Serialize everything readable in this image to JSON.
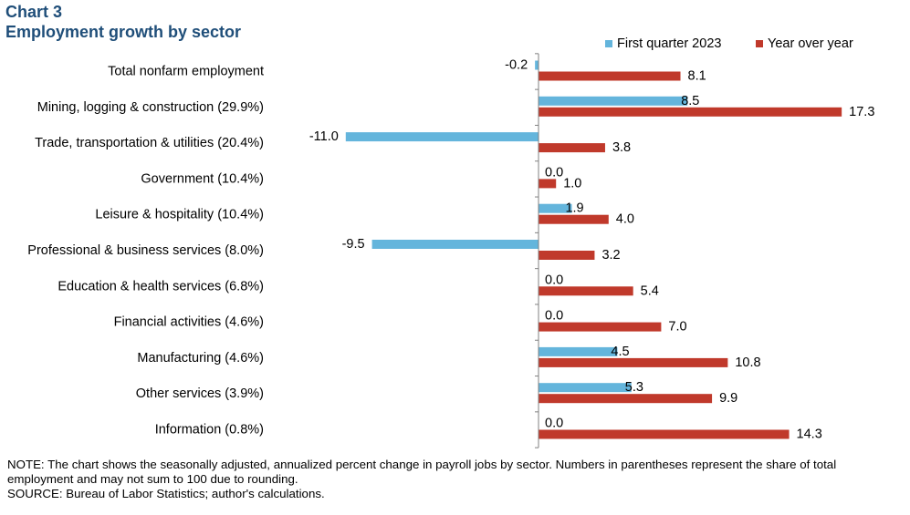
{
  "header": {
    "chart_number": "Chart 3",
    "title": "Employment growth by sector"
  },
  "colors": {
    "quarter": "#64b5dc",
    "yoy": "#c0392b",
    "title": "#1f4e79"
  },
  "chart_data": {
    "type": "bar",
    "orientation": "horizontal",
    "title": "Employment growth by sector",
    "categories": [
      "Total nonfarm employment",
      "Mining, logging & construction (29.9%)",
      "Trade, transportation & utilities (20.4%)",
      "Government (10.4%)",
      "Leisure & hospitality (10.4%)",
      "Professional & business services (8.0%)",
      "Education & health services (6.8%)",
      "Financial activities (4.6%)",
      "Manufacturing (4.6%)",
      "Other services (3.9%)",
      "Information (0.8%)"
    ],
    "series": [
      {
        "name": "First quarter 2023",
        "color": "#64b5dc",
        "values": [
          -0.2,
          8.5,
          -11.0,
          0.0,
          1.9,
          -9.5,
          0.0,
          0.0,
          4.5,
          5.3,
          0.0
        ],
        "labels": [
          "-0.2",
          "8.5",
          "-11.0",
          "0.0",
          "1.9",
          "-9.5",
          "0.0",
          "0.0",
          "4.5",
          "5.3",
          "0.0"
        ]
      },
      {
        "name": "Year over year",
        "color": "#c0392b",
        "values": [
          8.1,
          17.3,
          3.8,
          1.0,
          4.0,
          3.2,
          5.4,
          7.0,
          10.8,
          9.9,
          14.3
        ],
        "labels": [
          "8.1",
          "17.3",
          "3.8",
          "1.0",
          "4.0",
          "3.2",
          "5.4",
          "7.0",
          "10.8",
          "9.9",
          "14.3"
        ]
      }
    ],
    "legend_position": "top-right",
    "xlim": [
      -11,
      18
    ]
  },
  "notes": {
    "note": "NOTE: The chart shows the seasonally adjusted, annualized percent change in payroll jobs by sector. Numbers in parentheses represent the share of total employment and may not sum to 100 due to rounding.",
    "source": "SOURCE: Bureau of Labor Statistics; author's calculations."
  }
}
